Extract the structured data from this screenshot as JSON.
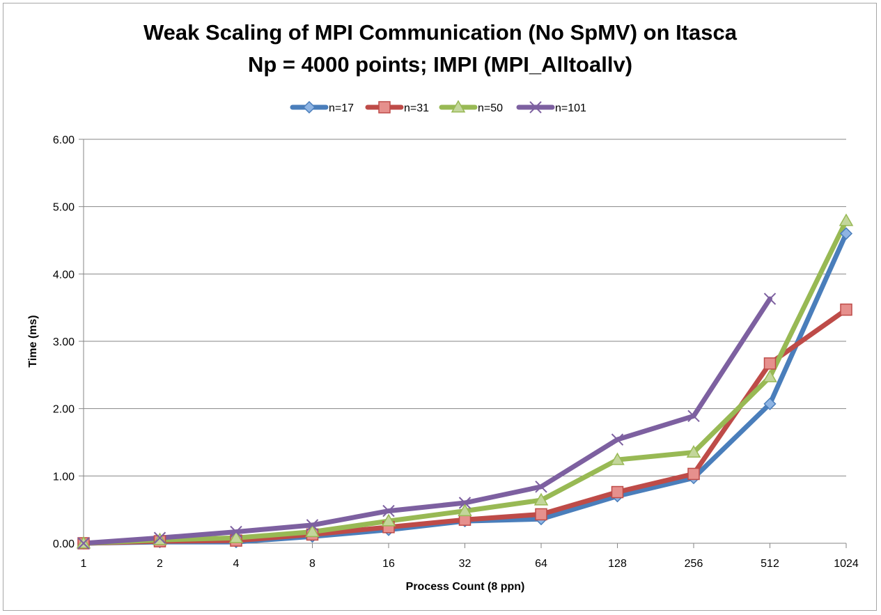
{
  "chart_data": {
    "type": "line",
    "title_lines": [
      "Weak Scaling of MPI Communication (No SpMV) on Itasca",
      "Np = 4000 points; IMPI (MPI_Alltoallv)"
    ],
    "xlabel": "Process Count (8 ppn)",
    "ylabel": "Time (ms)",
    "categories": [
      "1",
      "2",
      "4",
      "8",
      "16",
      "32",
      "64",
      "128",
      "256",
      "512",
      "1024"
    ],
    "yticks": [
      "0.00",
      "1.00",
      "2.00",
      "3.00",
      "4.00",
      "5.00",
      "6.00"
    ],
    "ylim": [
      0,
      6
    ],
    "grid": true,
    "legend_position": "top",
    "series": [
      {
        "name": "n=17",
        "color": "#4a7ebb",
        "marker": "diamond",
        "values": [
          0.0,
          0.02,
          0.02,
          0.1,
          0.2,
          0.33,
          0.36,
          0.7,
          0.97,
          2.07,
          4.6
        ]
      },
      {
        "name": "n=31",
        "color": "#be4b48",
        "marker": "square",
        "values": [
          0.0,
          0.03,
          0.04,
          0.13,
          0.24,
          0.35,
          0.43,
          0.76,
          1.03,
          2.67,
          3.47
        ]
      },
      {
        "name": "n=50",
        "color": "#98b954",
        "marker": "triangle",
        "values": [
          0.0,
          0.05,
          0.08,
          0.17,
          0.33,
          0.48,
          0.64,
          1.24,
          1.35,
          2.47,
          4.79
        ]
      },
      {
        "name": "n=101",
        "color": "#7d60a0",
        "marker": "x",
        "values": [
          0.0,
          0.08,
          0.17,
          0.27,
          0.48,
          0.6,
          0.84,
          1.54,
          1.89,
          3.63,
          null
        ]
      }
    ]
  }
}
